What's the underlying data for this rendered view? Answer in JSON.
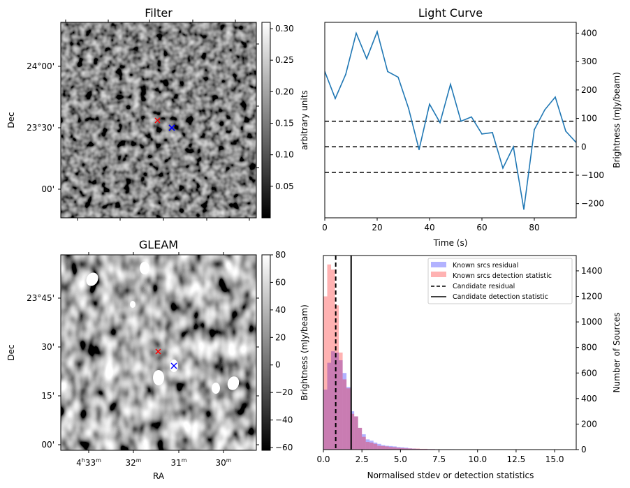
{
  "figure": {
    "panels": [
      "Filter",
      "Light Curve",
      "GLEAM",
      "Histogram"
    ]
  },
  "chart_data": [
    {
      "type": "heatmap",
      "title": "Filter",
      "ylabel": "Dec",
      "xlabel": "",
      "yticks": [
        "24°00'",
        "23°30'",
        "00'"
      ],
      "colorbar": {
        "label": "arbitrary units",
        "ticks": [
          "0.05",
          "0.10",
          "0.15",
          "0.20",
          "0.25",
          "0.30"
        ],
        "range": [
          0.0,
          0.31
        ],
        "cmap": "gray"
      },
      "markers": [
        {
          "name": "candidate",
          "color": "#ff0000",
          "symbol": "x"
        },
        {
          "name": "known-source",
          "color": "#0000ff",
          "symbol": "x"
        }
      ]
    },
    {
      "type": "line",
      "title": "Light Curve",
      "xlabel": "Time (s)",
      "ylabel": "Brightness (mJy/beam)",
      "xlim": [
        0,
        96
      ],
      "ylim": [
        -250,
        438
      ],
      "xticks": [
        "0",
        "20",
        "40",
        "60",
        "80"
      ],
      "yticks": [
        "−200",
        "−100",
        "0",
        "100",
        "200",
        "300",
        "400"
      ],
      "ytick_values": [
        -200,
        -100,
        0,
        100,
        200,
        300,
        400
      ],
      "xtick_values": [
        0,
        20,
        40,
        60,
        80
      ],
      "series": [
        {
          "name": "light curve",
          "color": "#1f77b4",
          "x": [
            0,
            4,
            8,
            12,
            16,
            20,
            24,
            28,
            32,
            36,
            40,
            44,
            48,
            52,
            56,
            60,
            64,
            68,
            72,
            76,
            80,
            84,
            88,
            92,
            96
          ],
          "y": [
            265,
            170,
            255,
            400,
            310,
            405,
            265,
            245,
            135,
            -10,
            150,
            85,
            220,
            90,
            105,
            45,
            50,
            -75,
            0,
            -220,
            60,
            130,
            175,
            55,
            15
          ]
        }
      ],
      "hlines": [
        {
          "y": 90,
          "style": "dashed",
          "color": "#000000"
        },
        {
          "y": 0,
          "style": "dashed",
          "color": "#000000"
        },
        {
          "y": -90,
          "style": "dashed",
          "color": "#000000"
        }
      ]
    },
    {
      "type": "heatmap",
      "title": "GLEAM",
      "xlabel": "RA",
      "ylabel": "Dec",
      "xticks": [
        "4h33m",
        "32m",
        "31m",
        "30m"
      ],
      "xticks_main": [
        "4",
        "33",
        "",
        "32",
        "",
        "31",
        "",
        "30"
      ],
      "yticks": [
        "23°45'",
        "30'",
        "15'",
        "00'"
      ],
      "colorbar": {
        "label": "Brightness (mJy/beam)",
        "ticks": [
          "−60",
          "−40",
          "−20",
          "0",
          "20",
          "40",
          "60",
          "80"
        ],
        "range": [
          -62,
          80
        ],
        "cmap": "gray"
      },
      "markers": [
        {
          "name": "candidate",
          "color": "#ff0000",
          "symbol": "x"
        },
        {
          "name": "known-source",
          "color": "#0000ff",
          "symbol": "x"
        }
      ]
    },
    {
      "type": "bar",
      "title": "",
      "xlabel": "Normalised stdev or detection statistics",
      "ylabel": "Number of Sources",
      "xlim": [
        0,
        16.4
      ],
      "ylim": [
        0,
        1520
      ],
      "xticks": [
        "0.0",
        "2.5",
        "5.0",
        "7.5",
        "10.0",
        "12.5",
        "15.0"
      ],
      "xtick_values": [
        0,
        2.5,
        5,
        7.5,
        10,
        12.5,
        15
      ],
      "yticks": [
        "0",
        "200",
        "400",
        "600",
        "800",
        "1000",
        "1200",
        "1400"
      ],
      "ytick_values": [
        0,
        200,
        400,
        600,
        800,
        1000,
        1200,
        1400
      ],
      "bin_width": 0.25,
      "series": [
        {
          "name": "Known srcs residual",
          "color": "#0000ff",
          "alpha": 0.3,
          "values": [
            470,
            680,
            770,
            760,
            700,
            600,
            490,
            300,
            260,
            170,
            120,
            80,
            70,
            55,
            45,
            35,
            30,
            28,
            25,
            20,
            18,
            15,
            10,
            8,
            6,
            5,
            5,
            4,
            4,
            3,
            3,
            3,
            3,
            3,
            2,
            2,
            2,
            2,
            2,
            2,
            1,
            1,
            0,
            0,
            0,
            1,
            1,
            1,
            1,
            1,
            1,
            0,
            0,
            0,
            0,
            0,
            0,
            0,
            0,
            0,
            0,
            0,
            0,
            0
          ]
        },
        {
          "name": "Known srcs detection statistic",
          "color": "#ff0000",
          "alpha": 0.3,
          "values": [
            1200,
            1450,
            1410,
            1130,
            760,
            550,
            480,
            280,
            260,
            170,
            100,
            60,
            55,
            45,
            30,
            28,
            25,
            20,
            18,
            14,
            12,
            10,
            9,
            8,
            8,
            6,
            6,
            4,
            4,
            3,
            3,
            3,
            3,
            2,
            2,
            2,
            2,
            2,
            2,
            2,
            2,
            2,
            2,
            1,
            1,
            1,
            1,
            1,
            1,
            0,
            0,
            0,
            0,
            1,
            0,
            0,
            1,
            0,
            0,
            0,
            1,
            0,
            0,
            0
          ]
        }
      ],
      "vlines": [
        {
          "name": "Candidate residual",
          "x": 0.8,
          "style": "dashed",
          "color": "#000000"
        },
        {
          "name": "Candidate detection statistic",
          "x": 1.8,
          "style": "solid",
          "color": "#000000"
        }
      ],
      "legend": {
        "position": "top-right",
        "entries": [
          "Known srcs residual",
          "Known srcs detection statistic",
          "Candidate residual",
          "Candidate detection statistic"
        ]
      }
    }
  ]
}
